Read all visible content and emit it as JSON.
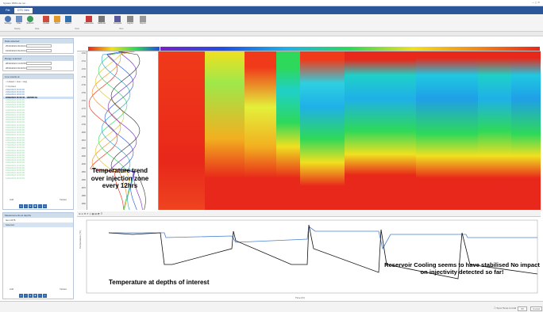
{
  "window": {
    "title": "System DMS Lite ver..."
  },
  "tabs": [
    {
      "label": "File"
    },
    {
      "label": "DTS View"
    }
  ],
  "ribbon": {
    "buttons": [
      {
        "label": "Settings",
        "icon": "gear-icon"
      },
      {
        "label": "Filter",
        "icon": "filter-icon"
      },
      {
        "label": "Refresh",
        "icon": "refresh-icon"
      },
      {
        "label": "Update",
        "icon": "update-icon"
      },
      {
        "label": "Alarm",
        "icon": "alarm-icon"
      },
      {
        "label": "Export",
        "icon": "export-icon"
      },
      {
        "label": "Reference",
        "icon": "reference-icon"
      },
      {
        "label": "Calibrate",
        "icon": "calibrate-icon"
      },
      {
        "label": "Compare",
        "icon": "compare-icon"
      },
      {
        "label": "Layout",
        "icon": "layout-icon"
      },
      {
        "label": "Report",
        "icon": "report-icon"
      }
    ],
    "groups": [
      {
        "label": "Replay"
      },
      {
        "label": "Data"
      },
      {
        "label": "Tools"
      },
      {
        "label": "View"
      }
    ]
  },
  "left": {
    "panel1": {
      "title": "Data selected",
      "rows": [
        "25/02/2024 09:49:04",
        "19/02/2024 09:49:04"
      ]
    },
    "panel2": {
      "title": "Range selected",
      "rows": [
        "28/02/2024 13:49:58",
        "28/02/2024 09:49:54"
      ]
    },
    "panel3": {
      "title": "Live results at",
      "options": [
        "Linked",
        "Live",
        "Avg"
      ],
      "checkbox": "Current",
      "items": [
        "23/02/2024 00:00:00",
        "23/02/2024 06:00:00",
        "22/02/2024 18:00:00",
        "22/02/2024 06:00:00 - 19/2008 2m",
        "22/02/2024 00:00:00",
        "21/02/2024 18:00:00",
        "21/02/2024 12:00:00",
        "21/02/2024 06:00:00",
        "21/02/2024 00:00:00",
        "20/02/2024 18:00:00",
        "20/02/2024 12:00:00",
        "20/02/2024 06:00:00",
        "20/02/2024 00:00:00",
        "19/02/2024 18:00:00",
        "19/02/2024 12:00:00",
        "19/02/2024 06:00:00",
        "19/02/2024 00:00:00",
        "18/02/2024 18:00:00",
        "18/02/2024 12:00:00",
        "18/02/2024 06:00:00",
        "18/02/2024 00:00:00",
        "17/02/2024 18:00:00",
        "17/02/2024 12:00:00",
        "17/02/2024 06:00:00",
        "17/02/2024 00:00:00",
        "16/02/2024 18:00:00",
        "16/02/2024 12:00:00",
        "16/02/2024 06:00:00",
        "16/02/2024 00:00:00",
        "15/02/2024 18:00:00",
        "15/02/2024 12:00:00",
        "15/02/2024 06:00:00",
        "15/02/2024 00:00:00",
        "14/02/2024 18:00:00",
        "14/02/2024 12:00:00",
        "14/02/2024 06:00:00"
      ],
      "footer": [
        "Add",
        "Delete"
      ]
    },
    "panel4": {
      "title": "Measurements at depths",
      "items": [
        "Item 2275",
        "Selected"
      ],
      "footer": [
        "Add",
        "Delete"
      ]
    }
  },
  "annotations": {
    "profile": "Temperature trend over injection zone every 12hrs",
    "bottom_left": "Temperature at depths of interest",
    "bottom_right": "Reservoir Cooling seems to have stabilised No impact on injectivity detected so far!"
  },
  "depth_axis": [
    "1700",
    "1710",
    "1720",
    "1730",
    "1740",
    "1750",
    "1760",
    "1770",
    "1780",
    "1790",
    "1800",
    "1810",
    "1820",
    "1830",
    "1840",
    "1850",
    "1860",
    "1870",
    "1880",
    "1890"
  ],
  "bottom_chart": {
    "xlabel": "Time (hr)",
    "ylabel": "Temperature (°C)"
  },
  "statusbar": {
    "checkbox": "Sync Temp to Grid",
    "buttons": [
      "OK",
      "Cancel"
    ]
  },
  "colors": {
    "accent": "#2b579a",
    "panel_header": "#cfdcea",
    "heat_hot": "#e8281a",
    "heat_cool": "#1fb0e8"
  }
}
